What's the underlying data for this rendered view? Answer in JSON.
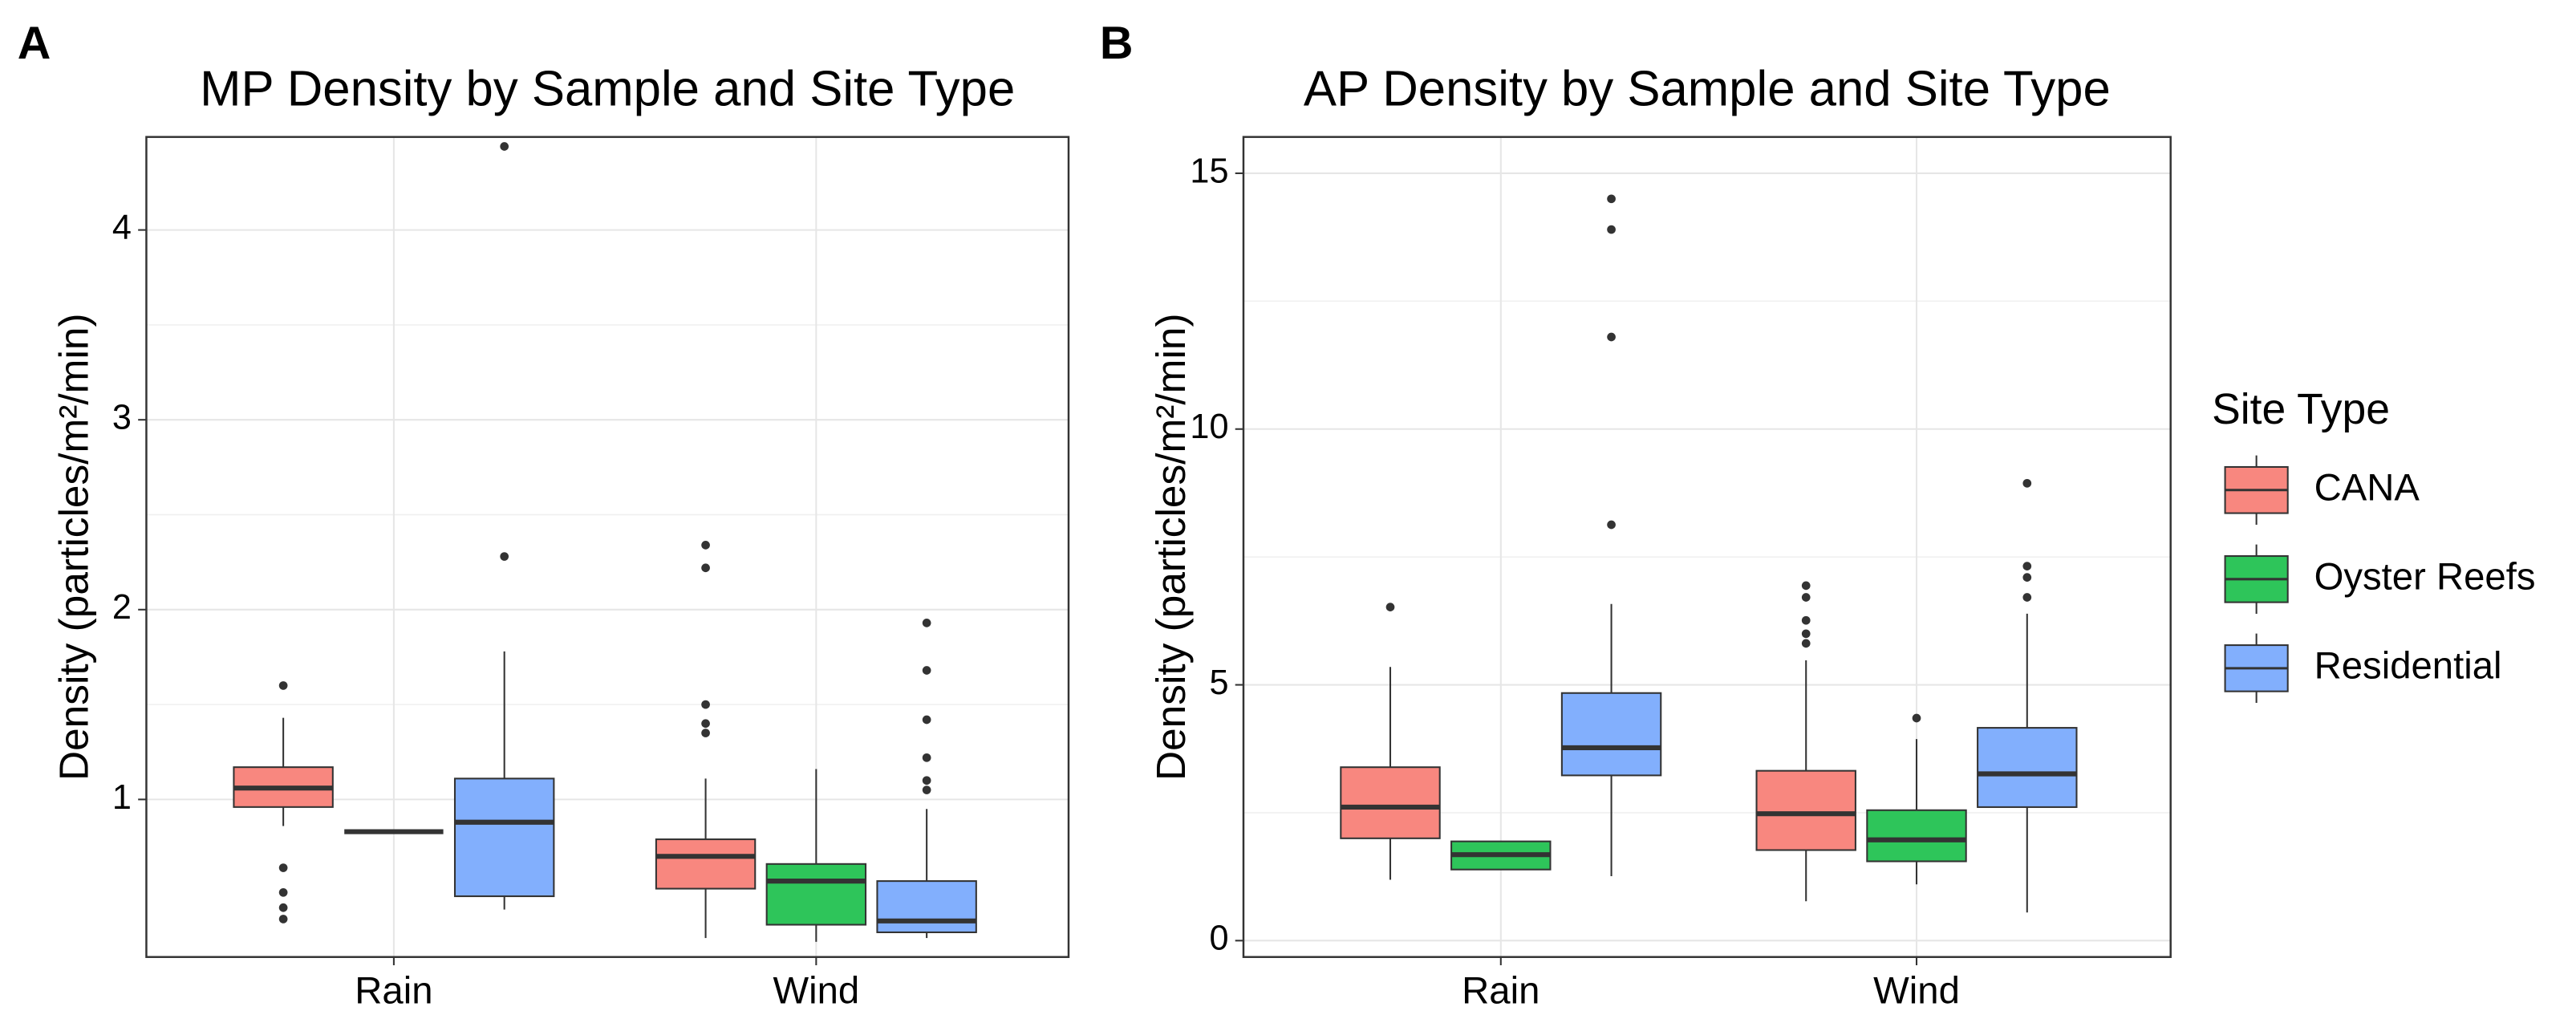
{
  "chart_data": [
    {
      "type": "box",
      "panel_label": "A",
      "title": "MP Density by Sample and Site Type",
      "ylabel": "Density (particles/m²/min)",
      "categories": [
        "Rain",
        "Wind"
      ],
      "ylim": [
        0.17,
        4.49
      ],
      "yticks": [
        1,
        2,
        3,
        4
      ],
      "grid": true,
      "series": [
        {
          "name": "CANA",
          "color": "#f8877f",
          "boxes": [
            {
              "whisker_low": 0.86,
              "q1": 0.96,
              "median": 1.06,
              "q3": 1.17,
              "whisker_high": 1.43,
              "outliers": [
                1.6,
                0.64,
                0.51,
                0.43,
                0.37
              ]
            },
            {
              "whisker_low": 0.27,
              "q1": 0.53,
              "median": 0.7,
              "q3": 0.79,
              "whisker_high": 1.11,
              "outliers": [
                2.34,
                2.22,
                1.5,
                1.4,
                1.35
              ]
            }
          ]
        },
        {
          "name": "Oyster Reefs",
          "color": "#2ec55a",
          "boxes": [
            {
              "whisker_low": 0.83,
              "q1": 0.83,
              "median": 0.83,
              "q3": 0.83,
              "whisker_high": 0.83,
              "outliers": []
            },
            {
              "whisker_low": 0.25,
              "q1": 0.34,
              "median": 0.57,
              "q3": 0.66,
              "whisker_high": 1.16,
              "outliers": []
            }
          ]
        },
        {
          "name": "Residential",
          "color": "#82affd",
          "boxes": [
            {
              "whisker_low": 0.42,
              "q1": 0.49,
              "median": 0.88,
              "q3": 1.11,
              "whisker_high": 1.78,
              "outliers": [
                2.28,
                4.44
              ]
            },
            {
              "whisker_low": 0.27,
              "q1": 0.3,
              "median": 0.36,
              "q3": 0.57,
              "whisker_high": 0.95,
              "outliers": [
                1.93,
                1.68,
                1.42,
                1.22,
                1.1,
                1.05
              ]
            }
          ]
        }
      ]
    },
    {
      "type": "box",
      "panel_label": "B",
      "title": "AP Density by Sample and Site Type",
      "ylabel": "Density (particles/m²/min)",
      "categories": [
        "Rain",
        "Wind"
      ],
      "ylim": [
        -0.32,
        15.71
      ],
      "yticks": [
        0,
        5,
        10,
        15
      ],
      "grid": true,
      "legend_title": "Site Type",
      "legend": "right",
      "series": [
        {
          "name": "CANA",
          "color": "#f8877f",
          "boxes": [
            {
              "whisker_low": 1.19,
              "q1": 2.0,
              "median": 2.61,
              "q3": 3.39,
              "whisker_high": 5.35,
              "outliers": [
                6.52
              ]
            },
            {
              "whisker_low": 0.77,
              "q1": 1.77,
              "median": 2.48,
              "q3": 3.32,
              "whisker_high": 5.48,
              "outliers": [
                5.81,
                6.0,
                6.26,
                6.71,
                6.94
              ]
            }
          ]
        },
        {
          "name": "Oyster Reefs",
          "color": "#2ec55a",
          "boxes": [
            {
              "whisker_low": 1.39,
              "q1": 1.39,
              "median": 1.68,
              "q3": 1.94,
              "whisker_high": 1.94,
              "outliers": []
            },
            {
              "whisker_low": 1.1,
              "q1": 1.55,
              "median": 1.97,
              "q3": 2.55,
              "whisker_high": 3.94,
              "outliers": [
                4.35
              ]
            }
          ]
        },
        {
          "name": "Residential",
          "color": "#82affd",
          "boxes": [
            {
              "whisker_low": 1.26,
              "q1": 3.23,
              "median": 3.77,
              "q3": 4.84,
              "whisker_high": 6.58,
              "outliers": [
                8.13,
                11.8,
                13.9,
                14.5
              ]
            },
            {
              "whisker_low": 0.55,
              "q1": 2.61,
              "median": 3.26,
              "q3": 4.16,
              "whisker_high": 6.39,
              "outliers": [
                6.71,
                7.1,
                7.32,
                8.94
              ]
            }
          ]
        }
      ]
    }
  ]
}
